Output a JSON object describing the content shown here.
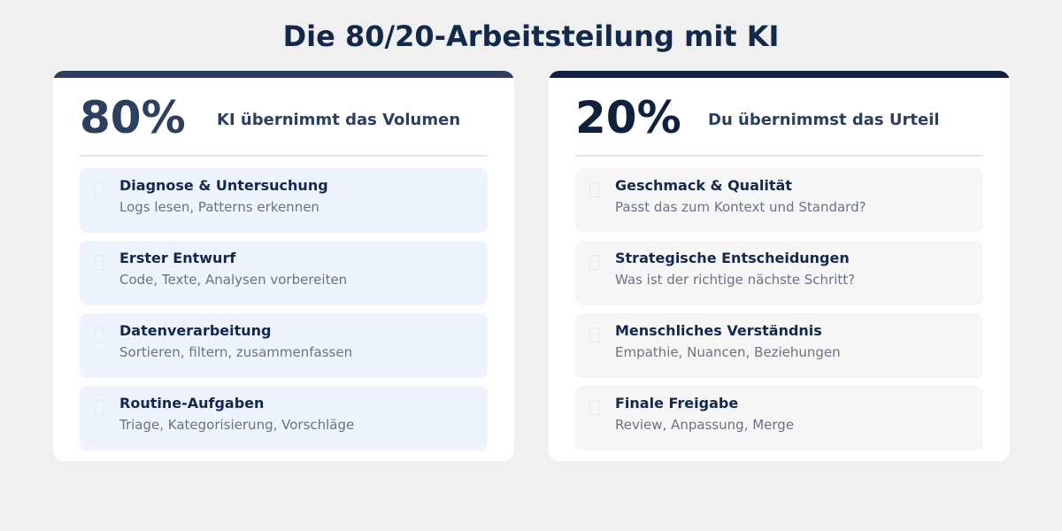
{
  "title": "Die 80/20-Arbeitsteilung mit KI",
  "columns": [
    {
      "percent": "80%",
      "heading": "KI übernimmt das Volumen",
      "items": [
        {
          "title": "Diagnose & Untersuchung",
          "description": "Logs lesen, Patterns erkennen"
        },
        {
          "title": "Erster Entwurf",
          "description": "Code, Texte, Analysen vorbereiten"
        },
        {
          "title": "Datenverarbeitung",
          "description": "Sortieren, filtern, zusammenfassen"
        },
        {
          "title": "Routine-Aufgaben",
          "description": "Triage, Kategorisierung, Vorschläge"
        }
      ]
    },
    {
      "percent": "20%",
      "heading": "Du übernimmst das Urteil",
      "items": [
        {
          "title": "Geschmack & Qualität",
          "description": "Passt das zum Kontext und Standard?"
        },
        {
          "title": "Strategische Entscheidungen",
          "description": "Was ist der richtige nächste Schritt?"
        },
        {
          "title": "Menschliches Verständnis",
          "description": "Empathie, Nuancen, Beziehungen"
        },
        {
          "title": "Finale Freigabe",
          "description": "Review, Anpassung, Merge"
        }
      ]
    }
  ]
}
